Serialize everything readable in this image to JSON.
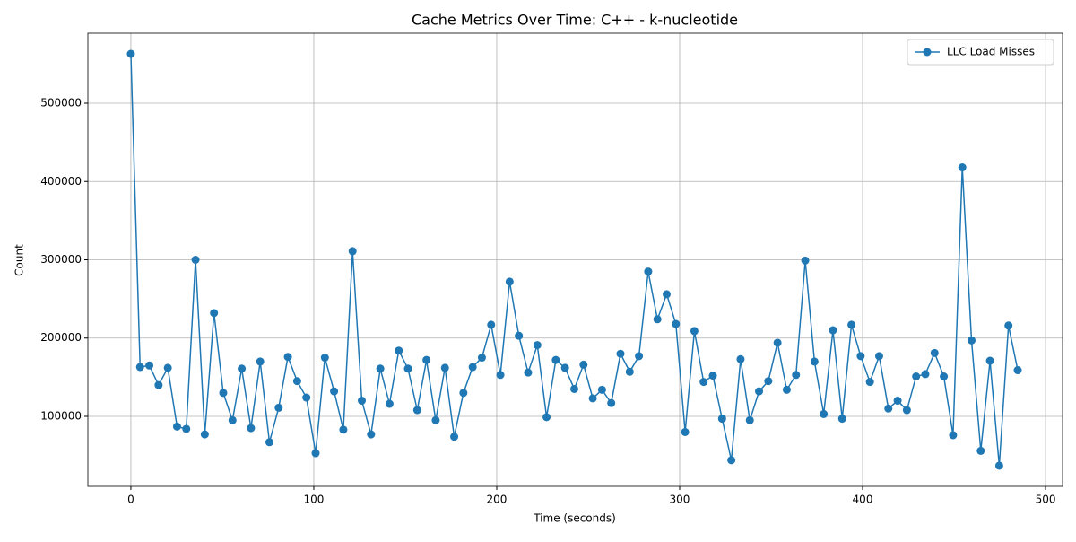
{
  "chart_data": {
    "type": "line",
    "title": "Cache Metrics Over Time: C++ - k-nucleotide",
    "x_label": "Time (seconds)",
    "y_label": "Count",
    "x": [
      0,
      5.05,
      10.1,
      15.15,
      20.2,
      25.25,
      30.3,
      35.35,
      40.4,
      45.45,
      50.5,
      55.55,
      60.6,
      65.65,
      70.7,
      75.75,
      80.8,
      85.85,
      90.9,
      95.95,
      101,
      106.05,
      111.1,
      116.15,
      121.2,
      126.25,
      131.3,
      136.35,
      141.4,
      146.45,
      151.5,
      156.55,
      161.6,
      166.65,
      171.7,
      176.75,
      181.8,
      186.85,
      191.9,
      196.95,
      202,
      207.05,
      212.1,
      217.15,
      222.2,
      227.25,
      232.3,
      237.35,
      242.4,
      247.45,
      252.5,
      257.55,
      262.6,
      267.65,
      272.7,
      277.75,
      282.8,
      287.85,
      292.9,
      297.95,
      303,
      308.05,
      313.1,
      318.15,
      323.2,
      328.25,
      333.3,
      338.35,
      343.4,
      348.45,
      353.5,
      358.55,
      363.6,
      368.65,
      373.7,
      378.75,
      383.8,
      388.85,
      393.9,
      398.95,
      404,
      409.05,
      414.1,
      419.15,
      424.2,
      429.25,
      434.3,
      439.35,
      444.4,
      449.45,
      454.5,
      459.55,
      464.6,
      469.65,
      474.7,
      479.75,
      484.8
    ],
    "series": [
      {
        "name": "LLC Load Misses",
        "color": "#1f77b4",
        "values": [
          563000,
          163000,
          165000,
          140000,
          162000,
          87000,
          84000,
          300000,
          77000,
          232000,
          130000,
          95000,
          161000,
          85000,
          170000,
          67000,
          111000,
          176000,
          145000,
          124000,
          53000,
          175000,
          132000,
          83000,
          311000,
          120000,
          77000,
          161000,
          116000,
          184000,
          161000,
          108000,
          172000,
          95000,
          162000,
          74000,
          130000,
          163000,
          175000,
          217000,
          153000,
          272000,
          203000,
          156000,
          191000,
          99000,
          172000,
          162000,
          135000,
          166000,
          123000,
          134000,
          117000,
          180000,
          157000,
          177000,
          285000,
          224000,
          256000,
          218000,
          80000,
          209000,
          144000,
          152000,
          97000,
          44000,
          173000,
          95000,
          132000,
          145000,
          194000,
          134000,
          153000,
          299000,
          170000,
          103000,
          210000,
          97000,
          217000,
          177000,
          144000,
          177000,
          110000,
          120000,
          108000,
          151000,
          154000,
          181000,
          151000,
          76000,
          418000,
          197000,
          56000,
          171000,
          37000,
          216000,
          159000
        ]
      }
    ],
    "xlim": [
      -23.5,
      509.3
    ],
    "ylim": [
      10600,
      589400
    ],
    "xticks": [
      0,
      100,
      200,
      300,
      400,
      500
    ],
    "yticks": [
      100000,
      200000,
      300000,
      400000,
      500000
    ],
    "grid": true,
    "legend": "upper right"
  }
}
